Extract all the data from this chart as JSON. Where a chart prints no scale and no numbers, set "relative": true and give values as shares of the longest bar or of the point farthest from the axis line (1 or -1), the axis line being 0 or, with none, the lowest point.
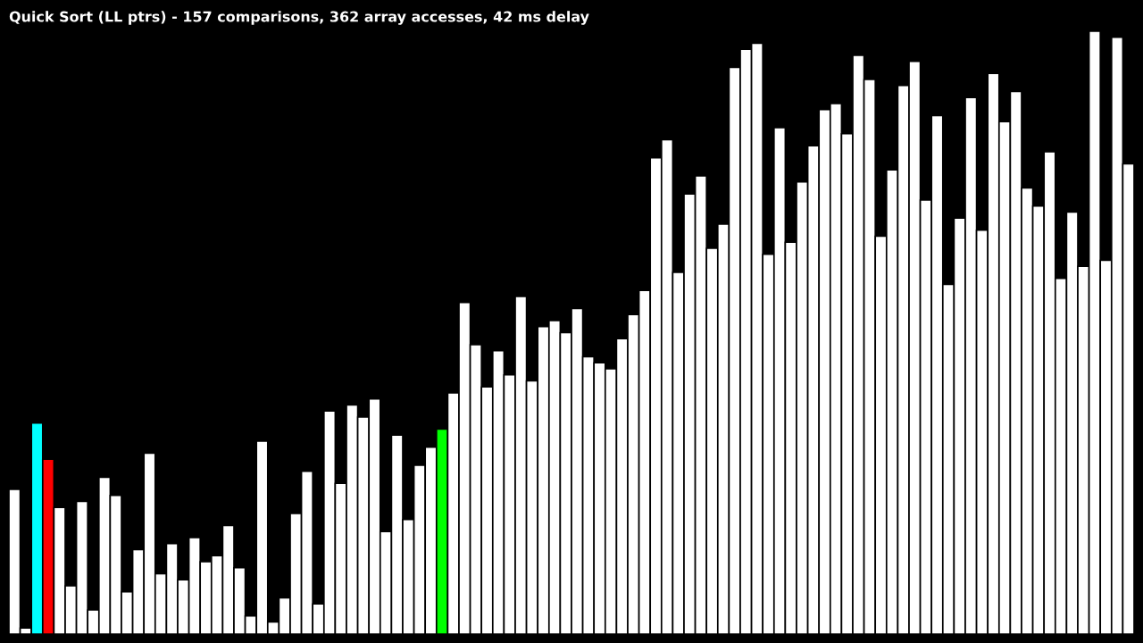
{
  "chart_data": {
    "type": "bar",
    "title": "Quick Sort (LL ptrs) - 157 comparisons, 362 array accesses, 42 ms delay",
    "relative": true,
    "grid": false,
    "legend": false,
    "categories": [
      null,
      null,
      null,
      null,
      null,
      null,
      null,
      null,
      null,
      null,
      null,
      null,
      null,
      null,
      null,
      null,
      null,
      null,
      null,
      null,
      null,
      null,
      null,
      null,
      null,
      null,
      null,
      null,
      null,
      null,
      null,
      null,
      null,
      null,
      null,
      null,
      null,
      null,
      null,
      null,
      null,
      null,
      null,
      null,
      null,
      null,
      null,
      null,
      null,
      null,
      null,
      null,
      null,
      null,
      null,
      null,
      null,
      null,
      null,
      null,
      null,
      null,
      null,
      null,
      null,
      null,
      null,
      null,
      null,
      null,
      null,
      null,
      null,
      null,
      null,
      null,
      null,
      null,
      null,
      null,
      null,
      null,
      null,
      null,
      null,
      null,
      null,
      null,
      null,
      null,
      null,
      null,
      null,
      null,
      null,
      null,
      null,
      null,
      null,
      null
    ],
    "values": [
      0.24,
      0.01,
      0.35,
      0.29,
      0.21,
      0.08,
      0.22,
      0.04,
      0.26,
      0.23,
      0.07,
      0.14,
      0.3,
      0.1,
      0.15,
      0.09,
      0.16,
      0.12,
      0.13,
      0.18,
      0.11,
      0.03,
      0.32,
      0.02,
      0.06,
      0.2,
      0.27,
      0.05,
      0.37,
      0.25,
      0.38,
      0.36,
      0.39,
      0.17,
      0.33,
      0.19,
      0.28,
      0.31,
      0.34,
      0.4,
      0.55,
      0.48,
      0.41,
      0.47,
      0.43,
      0.56,
      0.42,
      0.51,
      0.52,
      0.5,
      0.54,
      0.46,
      0.45,
      0.44,
      0.49,
      0.53,
      0.57,
      0.79,
      0.82,
      0.6,
      0.73,
      0.76,
      0.64,
      0.68,
      0.94,
      0.97,
      0.98,
      0.63,
      0.84,
      0.65,
      0.75,
      0.81,
      0.87,
      0.88,
      0.83,
      0.96,
      0.92,
      0.66,
      0.77,
      0.91,
      0.95,
      0.72,
      0.86,
      0.58,
      0.69,
      0.89,
      0.67,
      0.93,
      0.85,
      0.9,
      0.74,
      0.71,
      0.8,
      0.59,
      0.7,
      0.61,
      1,
      0.62,
      0.99,
      0.78
    ],
    "colors": [
      "#ffffff",
      "#ffffff",
      "#00ffff",
      "#ff0000",
      "#ffffff",
      "#ffffff",
      "#ffffff",
      "#ffffff",
      "#ffffff",
      "#ffffff",
      "#ffffff",
      "#ffffff",
      "#ffffff",
      "#ffffff",
      "#ffffff",
      "#ffffff",
      "#ffffff",
      "#ffffff",
      "#ffffff",
      "#ffffff",
      "#ffffff",
      "#ffffff",
      "#ffffff",
      "#ffffff",
      "#ffffff",
      "#ffffff",
      "#ffffff",
      "#ffffff",
      "#ffffff",
      "#ffffff",
      "#ffffff",
      "#ffffff",
      "#ffffff",
      "#ffffff",
      "#ffffff",
      "#ffffff",
      "#ffffff",
      "#ffffff",
      "#00ff00",
      "#ffffff",
      "#ffffff",
      "#ffffff",
      "#ffffff",
      "#ffffff",
      "#ffffff",
      "#ffffff",
      "#ffffff",
      "#ffffff",
      "#ffffff",
      "#ffffff",
      "#ffffff",
      "#ffffff",
      "#ffffff",
      "#ffffff",
      "#ffffff",
      "#ffffff",
      "#ffffff",
      "#ffffff",
      "#ffffff",
      "#ffffff",
      "#ffffff",
      "#ffffff",
      "#ffffff",
      "#ffffff",
      "#ffffff",
      "#ffffff",
      "#ffffff",
      "#ffffff",
      "#ffffff",
      "#ffffff",
      "#ffffff",
      "#ffffff",
      "#ffffff",
      "#ffffff",
      "#ffffff",
      "#ffffff",
      "#ffffff",
      "#ffffff",
      "#ffffff",
      "#ffffff",
      "#ffffff",
      "#ffffff",
      "#ffffff",
      "#ffffff",
      "#ffffff",
      "#ffffff",
      "#ffffff",
      "#ffffff",
      "#ffffff",
      "#ffffff",
      "#ffffff",
      "#ffffff",
      "#ffffff",
      "#ffffff",
      "#ffffff",
      "#ffffff",
      "#ffffff",
      "#ffffff",
      "#ffffff",
      "#ffffff"
    ]
  }
}
